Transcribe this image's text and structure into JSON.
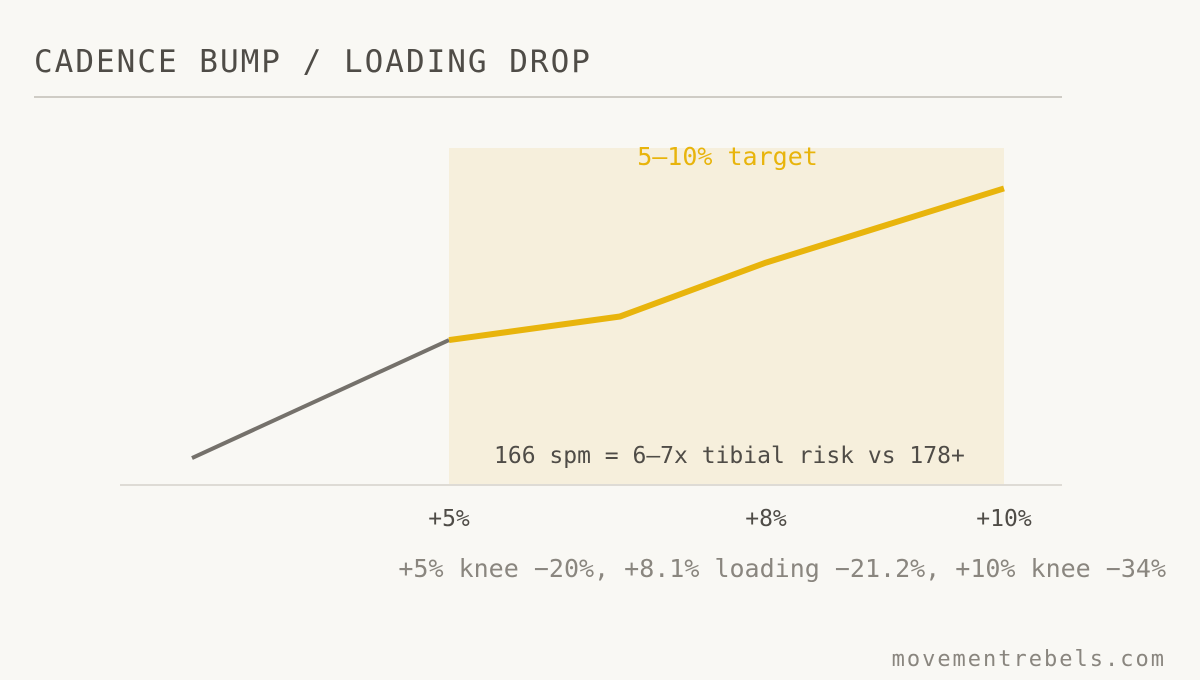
{
  "chart_data": {
    "type": "line",
    "title": "CADENCE BUMP / LOADING DROP",
    "categories": [
      null,
      "+5%",
      null,
      "+8%",
      "+10%"
    ],
    "series": [
      {
        "color": "#75716b",
        "values": [
          8,
          43,
          null,
          null,
          null
        ]
      },
      {
        "color": "#e8b40c",
        "values": [
          null,
          43,
          50,
          66,
          88
        ]
      }
    ],
    "ylim": [
      0,
      100
    ],
    "band_label": "5–10% target",
    "annotation": "166 spm = 6–7x tibial risk vs 178+",
    "note": "+5% knee −20%, +8.1% loading −21.2%, +10% knee −34%",
    "source": "movementrebels.com"
  }
}
